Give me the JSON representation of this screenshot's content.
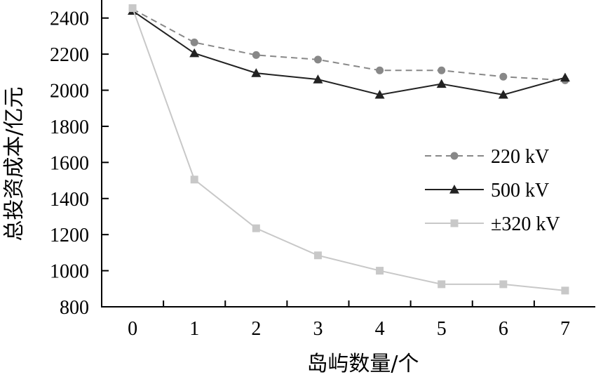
{
  "chart_data": {
    "type": "line",
    "xlabel": "岛屿数量/个",
    "ylabel": "总投资成本/亿元",
    "x": [
      0,
      1,
      2,
      3,
      4,
      5,
      6,
      7
    ],
    "xlim": [
      -0.5,
      7.5
    ],
    "ylim": [
      800,
      2500
    ],
    "yticks": [
      800,
      1000,
      1200,
      1400,
      1600,
      1800,
      2000,
      2200,
      2400
    ],
    "grid": false,
    "legend_position": "right",
    "series": [
      {
        "name": "220 kV",
        "values": [
          2450,
          2265,
          2195,
          2170,
          2110,
          2110,
          2075,
          2055
        ],
        "color": "#888888",
        "line": "dashed",
        "marker": "circle"
      },
      {
        "name": "500 kV",
        "values": [
          2440,
          2205,
          2095,
          2060,
          1975,
          2035,
          1975,
          2070
        ],
        "color": "#222222",
        "line": "solid",
        "marker": "triangle"
      },
      {
        "name": "±320 kV",
        "values": [
          2455,
          1505,
          1235,
          1085,
          1000,
          925,
          925,
          890
        ],
        "color": "#c8c8c8",
        "line": "solid",
        "marker": "square"
      }
    ]
  }
}
